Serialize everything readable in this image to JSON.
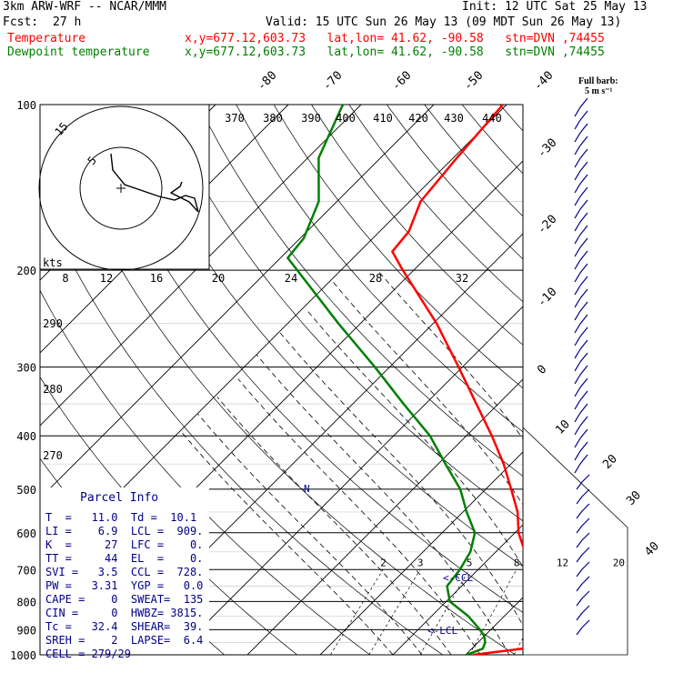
{
  "header": {
    "model": "3km ARW-WRF -- NCAR/MMM",
    "init": "Init: 12 UTC Sat 25 May 13",
    "fcst_label": "Fcst:",
    "fcst_value": "27 h",
    "valid": "Valid: 15 UTC Sun 26 May 13 (09 MDT Sun 26 May 13)",
    "temp_label": "Temperature",
    "temp_info": "x,y=677.12,603.73   lat,lon= 41.62, -90.58   stn=DVN ,74455",
    "dew_label": "Dewpoint temperature",
    "dew_info": "x,y=677.12,603.73   lat,lon= 41.62, -90.58   stn=DVN ,74455",
    "barb_title": "Full barb:",
    "barb_unit": "5 m s⁻¹"
  },
  "colors": {
    "temperature": "#ff0000",
    "dewpoint": "#008000",
    "labels": "#00008b"
  },
  "parcel": {
    "title": "Parcel Info",
    "rows": [
      "T  =   11.0  Td =  10.1",
      "LI =    6.9  LCL =  909.",
      "K  =     27  LFC =    0.",
      "TT =     44  EL  =    0.",
      "SVI =   3.5  CCL =  728.",
      "PW =   3.31  YGP =   0.0",
      "CAPE =    0  SWEAT=  135",
      "CIN =     0  HWBZ= 3815.",
      "Tc =   32.4  SHEAR=  39.",
      "SREH =    2  LAPSE=  6.4",
      "CELL = 279/29"
    ]
  },
  "chart_data": {
    "type": "line",
    "subtype": "skew-T log-p",
    "y_axis": {
      "label": "",
      "ticks": [
        "100",
        "200",
        "300",
        "400",
        "500",
        "600",
        "700",
        "800",
        "900",
        "1000"
      ],
      "scale": "log"
    },
    "isotherm_labels": [
      "-80",
      "-70",
      "-60",
      "-50",
      "-40",
      "-30",
      "-20",
      "-10",
      "0",
      "10",
      "20",
      "30",
      "40"
    ],
    "theta_labels": [
      "370",
      "380",
      "390",
      "400",
      "410",
      "420",
      "430",
      "440",
      "290",
      "280",
      "270"
    ],
    "mixing_ratio_labels": [
      "2",
      "3",
      "5",
      "8",
      "12",
      "20"
    ],
    "hodograph": {
      "speed_label": "kts",
      "rings": [
        "8",
        "12",
        "16",
        "20",
        "24",
        "28",
        "32"
      ],
      "ring_labels": [
        "5",
        "15"
      ]
    },
    "annotations": [
      "<-CCL",
      "<-LCL"
    ],
    "series": [
      {
        "name": "Temperature",
        "values": [
          [
            1000,
            11.0
          ],
          [
            975,
            17.0
          ],
          [
            950,
            21.5
          ],
          [
            925,
            20.0
          ],
          [
            900,
            21.2
          ],
          [
            850,
            20.0
          ],
          [
            800,
            17.0
          ],
          [
            750,
            11.5
          ],
          [
            700,
            8.0
          ],
          [
            650,
            4.0
          ],
          [
            600,
            0.5
          ],
          [
            550,
            -2.5
          ],
          [
            500,
            -6.5
          ],
          [
            450,
            -11.0
          ],
          [
            400,
            -16.5
          ],
          [
            350,
            -23.0
          ],
          [
            300,
            -30.5
          ],
          [
            250,
            -39.5
          ],
          [
            200,
            -51.5
          ],
          [
            185,
            -55.5
          ],
          [
            170,
            -56.0
          ],
          [
            150,
            -58.5
          ],
          [
            125,
            -59.5
          ],
          [
            100,
            -60.5
          ]
        ]
      },
      {
        "name": "Dewpoint temperature",
        "values": [
          [
            1000,
            10.1
          ],
          [
            975,
            11.5
          ],
          [
            950,
            11.0
          ],
          [
            925,
            10.0
          ],
          [
            900,
            8.5
          ],
          [
            850,
            5.0
          ],
          [
            800,
            0.5
          ],
          [
            750,
            -2.0
          ],
          [
            700,
            -2.5
          ],
          [
            650,
            -3.5
          ],
          [
            600,
            -5.5
          ],
          [
            550,
            -9.5
          ],
          [
            500,
            -13.5
          ],
          [
            450,
            -19.0
          ],
          [
            400,
            -25.0
          ],
          [
            350,
            -33.0
          ],
          [
            300,
            -42.0
          ],
          [
            250,
            -53.0
          ],
          [
            200,
            -66.0
          ],
          [
            190,
            -69.0
          ],
          [
            175,
            -69.5
          ],
          [
            150,
            -72.5
          ],
          [
            125,
            -78.5
          ],
          [
            100,
            -82.5
          ]
        ]
      }
    ]
  }
}
